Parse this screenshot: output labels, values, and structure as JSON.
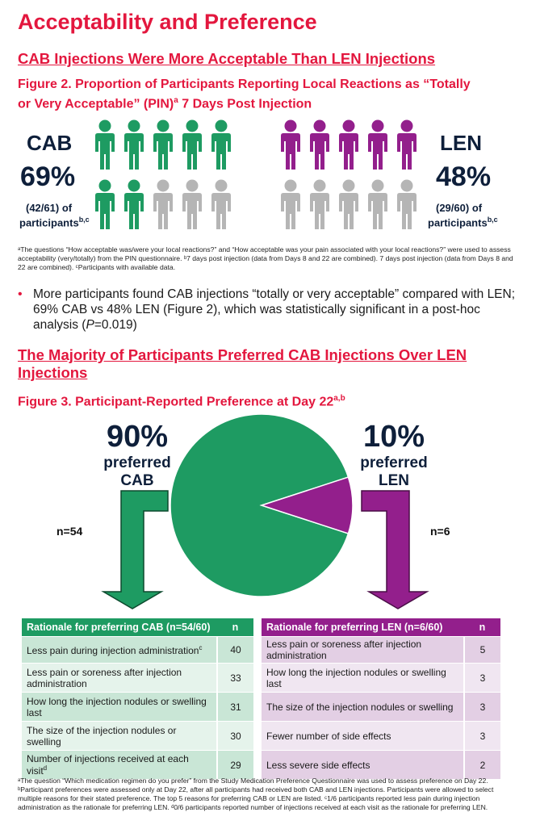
{
  "title": "Acceptability and Preference",
  "section1": {
    "heading": "CAB Injections Were More Acceptable Than LEN Injections",
    "figure_title_1": "Figure 2. Proportion of Participants Reporting Local Reactions as “Totally",
    "figure_title_2a": "or Very Acceptable” (PIN)",
    "figure_title_sup": "a",
    "figure_title_2b": " 7 Days Post Injection",
    "cab": {
      "label": "CAB",
      "percent": "69%",
      "fraction": "(42/61)",
      "of": " of",
      "participants": "participants",
      "sup": "b,c"
    },
    "len": {
      "label": "LEN",
      "percent": "48%",
      "fraction": "(29/60)",
      "of": " of",
      "participants": "participants",
      "sup": "b,c"
    },
    "footnote": "ᵃThe questions “How acceptable was/were your local reactions?” and “How acceptable was your pain associated with your local reactions?” were used to assess acceptability (very/totally) from the PIN questionnaire. ᵇ7 days post injection (data from Days 8 and 22 are combined). 7 days post injection (data from Days 8 and 22 are combined). ᶜParticipants with available data.",
    "bullet_a": "More participants found CAB injections “totally or very acceptable” compared with LEN; 69% CAB vs 48% LEN (Figure 2), which was statistically significant in a post-hoc analysis (",
    "bullet_p": "P",
    "bullet_b": "=0.019)"
  },
  "section2": {
    "heading_1": "The Majority of Participants Preferred CAB Injections Over LEN",
    "heading_2": "Injections",
    "figure_title": "Figure 3. Participant-Reported Preference at Day 22",
    "figure_sup": "a,b",
    "cab_pct": "90%",
    "cab_sub1": "preferred",
    "cab_sub2": "CAB",
    "len_pct": "10%",
    "len_sub1": "preferred",
    "len_sub2": "LEN",
    "cab_n": "n=54",
    "len_n": "n=6"
  },
  "colors": {
    "cab": "#1e9b62",
    "len": "#931f8c",
    "grey": "#b5b5b5",
    "accent": "#e3173e"
  },
  "chart_data": [
    {
      "type": "pictogram",
      "series": [
        {
          "name": "CAB",
          "values": [
            42,
            61
          ],
          "percent": 69,
          "icons_filled": 7,
          "icons_total": 10
        },
        {
          "name": "LEN",
          "values": [
            29,
            60
          ],
          "percent": 48,
          "icons_filled": 5,
          "icons_total": 10
        }
      ]
    },
    {
      "type": "pie",
      "categories": [
        "CAB",
        "LEN"
      ],
      "values": [
        90,
        10
      ],
      "n": [
        54,
        6
      ]
    }
  ],
  "cab_table": {
    "header": "Rationale for preferring CAB (n=54/60)",
    "n_header": "n",
    "rows": [
      {
        "label": "Less pain during injection administration",
        "sup": "c",
        "n": "40"
      },
      {
        "label": "Less pain or soreness after injection administration",
        "sup": "",
        "n": "33"
      },
      {
        "label": "How long the injection nodules or swelling last",
        "sup": "",
        "n": "31"
      },
      {
        "label": "The size of the injection nodules or swelling",
        "sup": "",
        "n": "30"
      },
      {
        "label": "Number of injections received at each visit",
        "sup": "d",
        "n": "29"
      }
    ]
  },
  "len_table": {
    "header": "Rationale for preferring LEN (n=6/60)",
    "n_header": "n",
    "rows": [
      {
        "label": "Less pain or soreness after injection administration",
        "n": "5"
      },
      {
        "label": "How long the injection nodules or swelling last",
        "n": "3"
      },
      {
        "label": "The size of the injection nodules or swelling",
        "n": "3"
      },
      {
        "label": "Fewer number of side effects",
        "n": "3"
      },
      {
        "label": "Less severe side effects",
        "n": "2"
      }
    ]
  },
  "footnote2": "ᵃThe question “Which medication regimen do you prefer” from the Study Medication Preference Questionnaire was used to assess preference on Day 22. ᵇParticipant preferences were assessed only at Day 22, after all participants had received both CAB and LEN injections. Participants were allowed to select multiple reasons for their stated preference. The top 5 reasons for preferring CAB or LEN are listed. ᶜ1/6 participants reported less pain during injection administration as the rationale for preferring LEN. ᵈ0/6 participants reported number of injections received at each visit as the rationale for preferring LEN."
}
